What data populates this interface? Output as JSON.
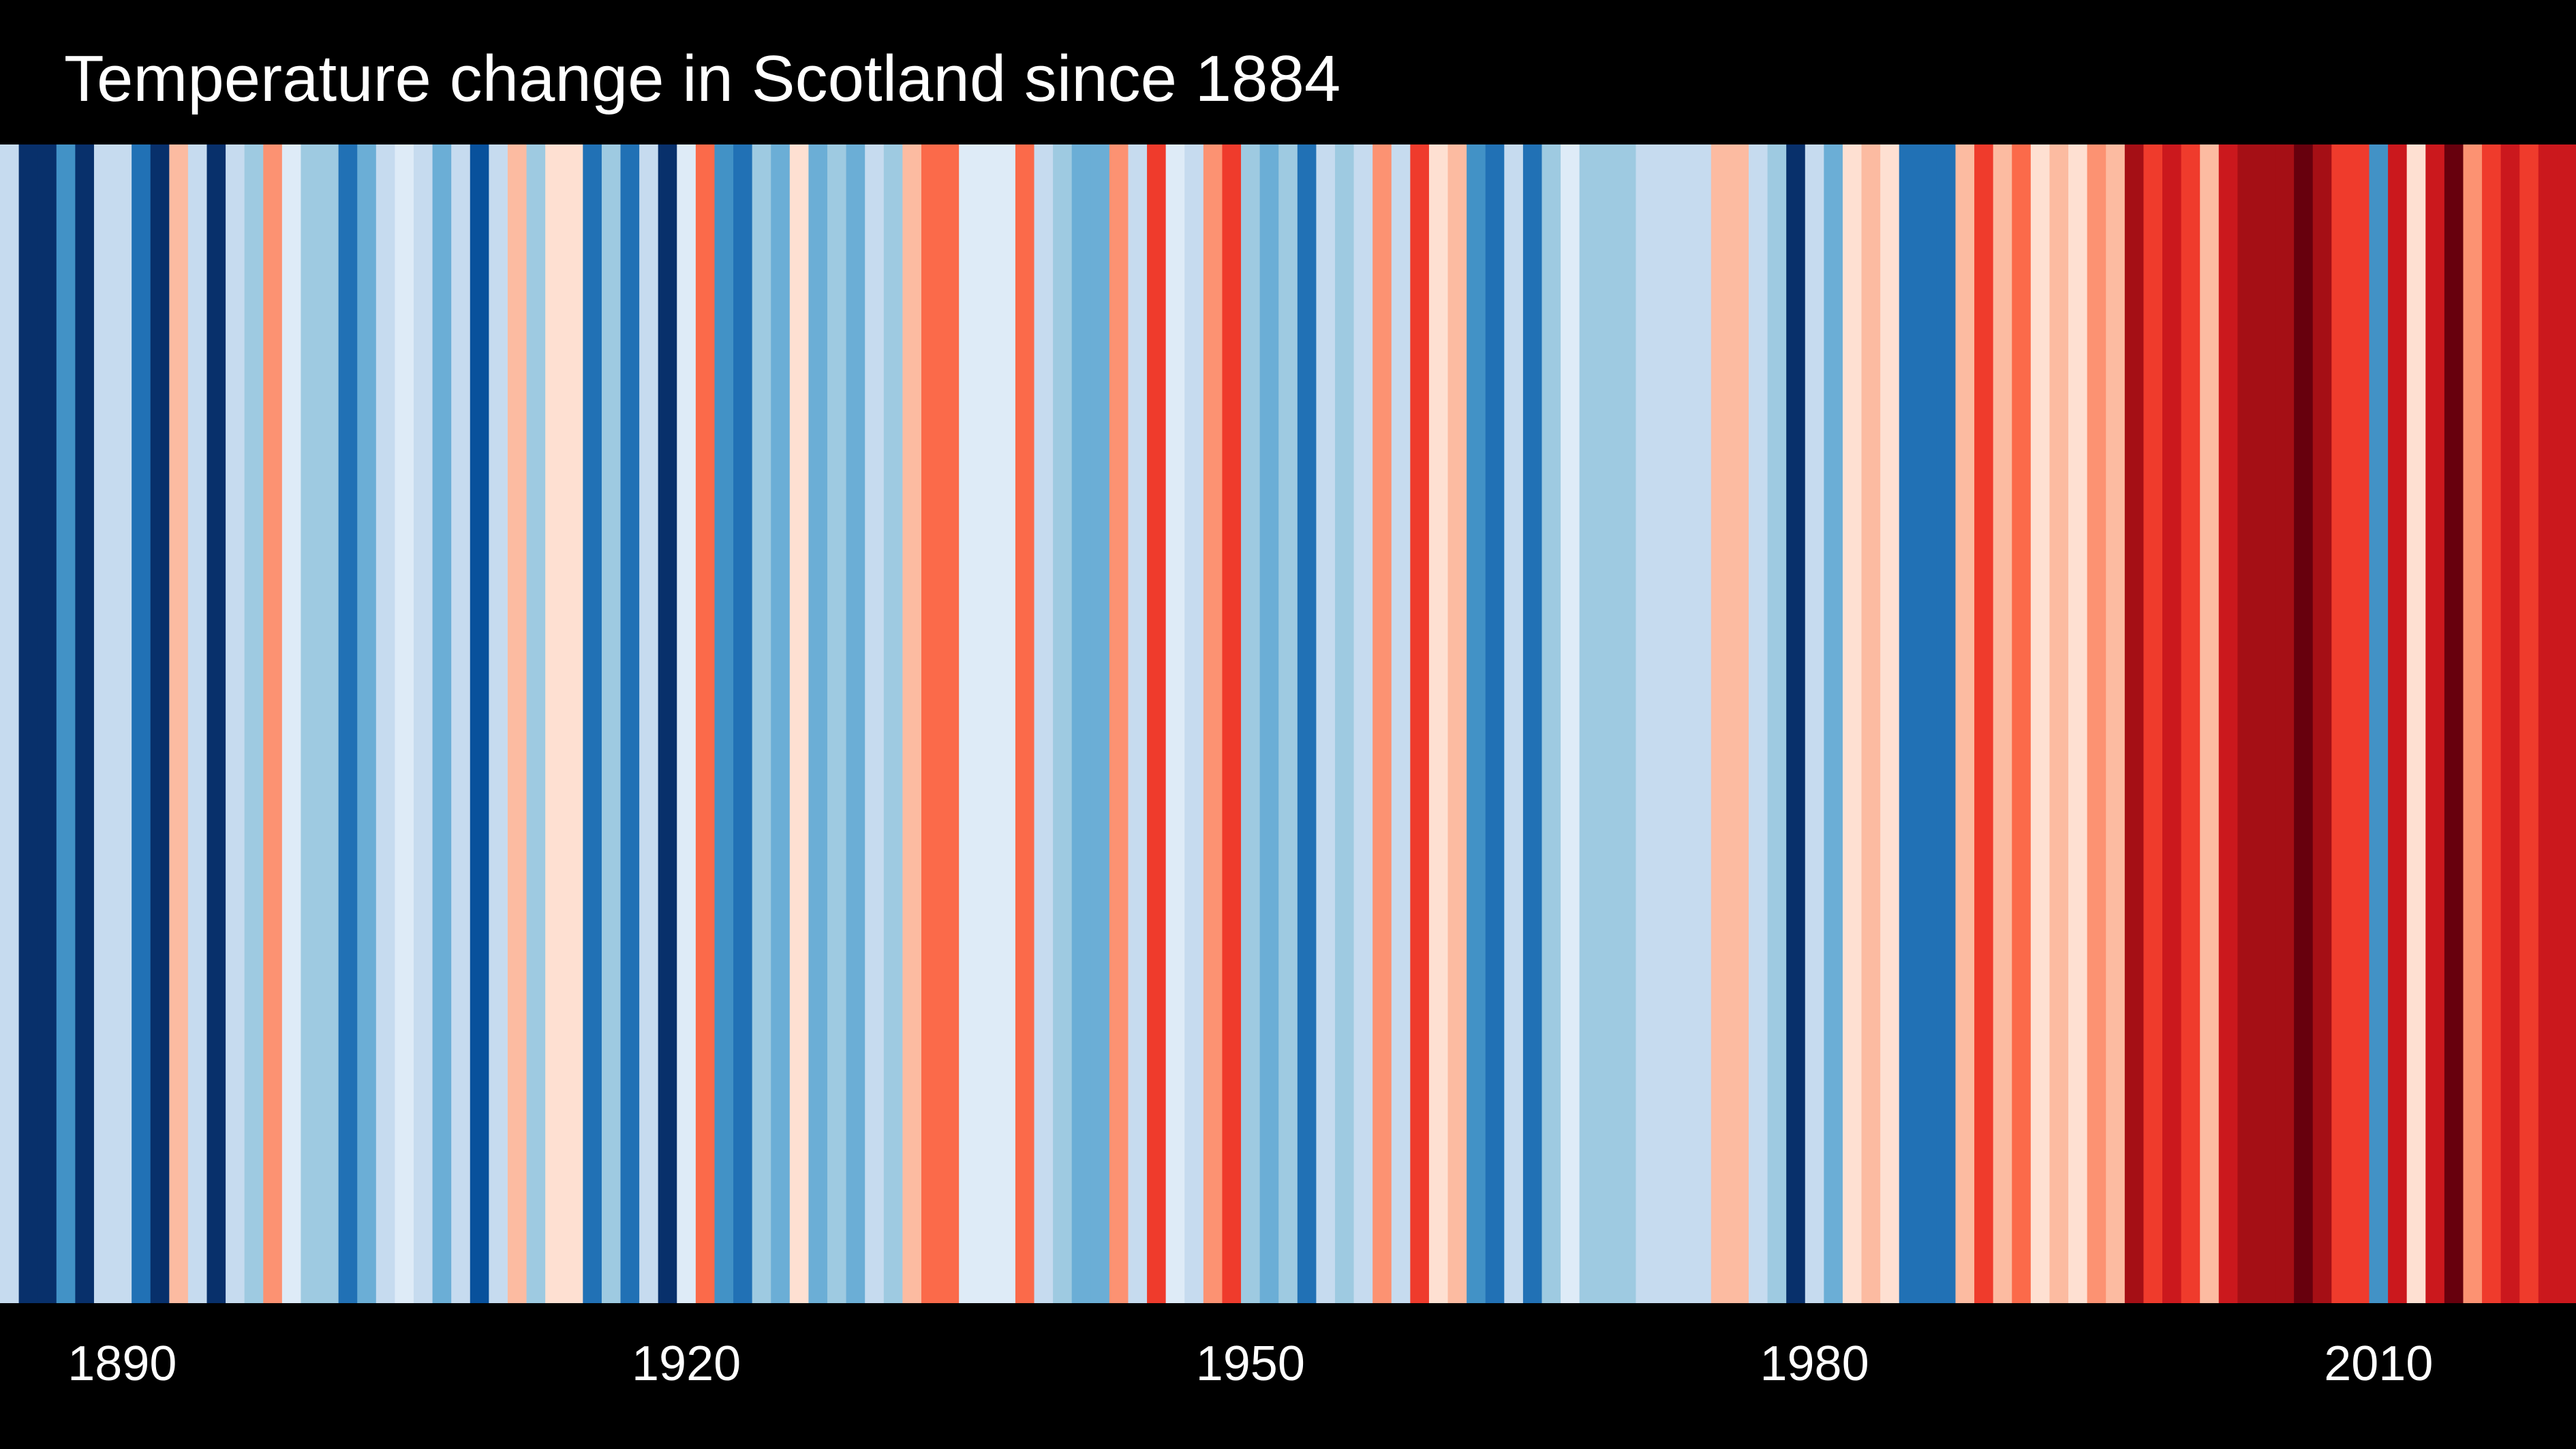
{
  "chart_data": {
    "type": "stripes",
    "title": "Temperature change in Scotland since 1884",
    "x": [
      1884,
      1885,
      1886,
      1887,
      1888,
      1889,
      1890,
      1891,
      1892,
      1893,
      1894,
      1895,
      1896,
      1897,
      1898,
      1899,
      1900,
      1901,
      1902,
      1903,
      1904,
      1905,
      1906,
      1907,
      1908,
      1909,
      1910,
      1911,
      1912,
      1913,
      1914,
      1915,
      1916,
      1917,
      1918,
      1919,
      1920,
      1921,
      1922,
      1923,
      1924,
      1925,
      1926,
      1927,
      1928,
      1929,
      1930,
      1931,
      1932,
      1933,
      1934,
      1935,
      1936,
      1937,
      1938,
      1939,
      1940,
      1941,
      1942,
      1943,
      1944,
      1945,
      1946,
      1947,
      1948,
      1949,
      1950,
      1951,
      1952,
      1953,
      1954,
      1955,
      1956,
      1957,
      1958,
      1959,
      1960,
      1961,
      1962,
      1963,
      1964,
      1965,
      1966,
      1967,
      1968,
      1969,
      1970,
      1971,
      1972,
      1973,
      1974,
      1975,
      1976,
      1977,
      1978,
      1979,
      1980,
      1981,
      1982,
      1983,
      1984,
      1985,
      1986,
      1987,
      1988,
      1989,
      1990,
      1991,
      1992,
      1993,
      1994,
      1995,
      1996,
      1997,
      1998,
      1999,
      2000,
      2001,
      2002,
      2003,
      2004,
      2005,
      2006,
      2007,
      2008,
      2009,
      2010,
      2011,
      2012,
      2013,
      2014,
      2015,
      2016,
      2017,
      2018,
      2019,
      2020
    ],
    "values": [
      -2,
      -8,
      -8,
      -5,
      -8,
      -2,
      -2,
      -6,
      -8,
      1,
      -2,
      -8,
      -2,
      -3,
      2,
      -1,
      -3,
      -3,
      -6,
      -4,
      -2,
      -1,
      -2,
      -4,
      -2,
      -7,
      -2,
      1,
      -3,
      0,
      0,
      -6,
      -3,
      -6,
      -2,
      -8,
      -1,
      3,
      -5,
      -6,
      -3,
      -4,
      0,
      -4,
      -3,
      -4,
      -2,
      -3,
      1,
      3,
      3,
      -1,
      -1,
      -1,
      3,
      -2,
      -3,
      -4,
      -4,
      2,
      -2,
      4,
      -1,
      -2,
      2,
      4,
      -3,
      -4,
      -3,
      -6,
      -2,
      -3,
      -2,
      2,
      -2,
      4,
      0,
      1,
      -5,
      -6,
      -2,
      -6,
      -3,
      -1,
      -3,
      -3,
      -3,
      -2,
      -2,
      -2,
      -2,
      1,
      1,
      -2,
      -3,
      -8,
      -2,
      -4,
      0,
      1,
      0,
      -6,
      -6,
      -6,
      1,
      4,
      1,
      3,
      0,
      1,
      0,
      2,
      1,
      6,
      4,
      5,
      4,
      1,
      5,
      6,
      6,
      6,
      7,
      6,
      4,
      4,
      -5,
      5,
      0,
      5,
      7,
      2,
      4,
      5,
      4,
      5,
      5
    ],
    "vlim": [
      -8,
      8
    ],
    "colors": [
      "#08306b",
      "#08519c",
      "#2171b5",
      "#4292c6",
      "#6baed6",
      "#9ecae1",
      "#c6dbef",
      "#deebf7",
      "#fee0d2",
      "#fcbba1",
      "#fc9272",
      "#fb6a4a",
      "#ef3b2c",
      "#cb181d",
      "#a50f15",
      "#67000d"
    ],
    "xlim": [
      1883.5,
      2020.5
    ],
    "xticks": [
      1890,
      1920,
      1950,
      1980,
      2010
    ]
  }
}
